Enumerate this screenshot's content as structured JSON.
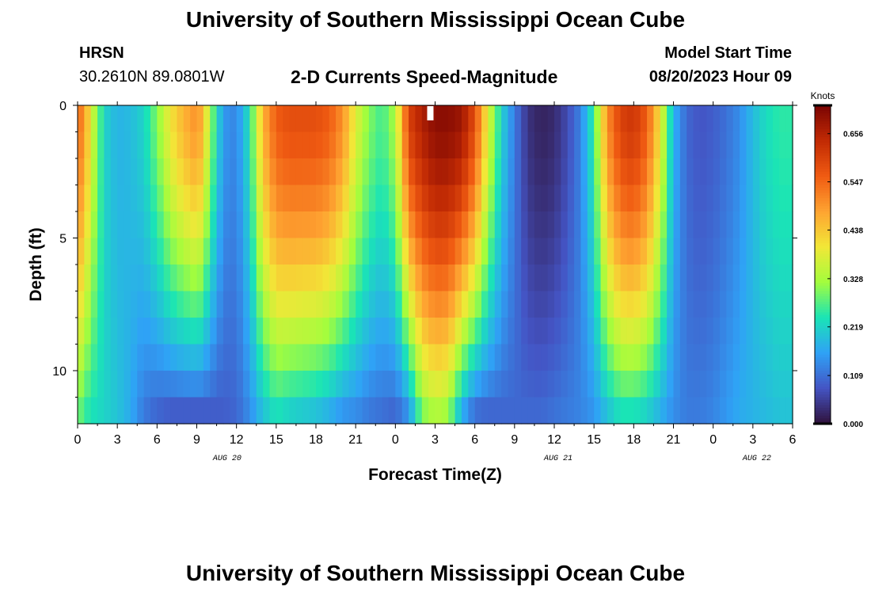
{
  "header": {
    "title": "University of Southern Mississippi Ocean Cube",
    "station": "HRSN",
    "coordinates": "30.2610N  89.0801W",
    "subtitle": "2-D Currents Speed-Magnitude",
    "model_start_label": "Model Start Time",
    "model_start_value": "08/20/2023 Hour 09"
  },
  "footer": {
    "title": "University of Southern Mississippi Ocean Cube"
  },
  "chart_data": {
    "type": "heatmap",
    "title": "2-D Currents Speed-Magnitude",
    "xlabel": "Forecast Time(Z)",
    "ylabel": "Depth (ft)",
    "x_range_hours": [
      0,
      54
    ],
    "y_range_ft": [
      0,
      12
    ],
    "x_ticks": [
      "0",
      "3",
      "6",
      "9",
      "12",
      "15",
      "18",
      "21",
      "0",
      "3",
      "6",
      "9",
      "12",
      "15",
      "18",
      "21",
      "0",
      "3",
      "6"
    ],
    "y_ticks": [
      "0",
      "5",
      "10"
    ],
    "date_labels": [
      {
        "text": "AUG 20",
        "hour": 11
      },
      {
        "text": "AUG 21",
        "hour": 36
      },
      {
        "text": "AUG 22",
        "hour": 51
      }
    ],
    "colorbar": {
      "label": "Knots",
      "ticks": [
        "0.656",
        "0.547",
        "0.438",
        "0.328",
        "0.219",
        "0.109",
        "0.000"
      ],
      "range": [
        0,
        0.72
      ],
      "colors": [
        "#30123b",
        "#4454c4",
        "#2fa2f6",
        "#1ae4b6",
        "#a3fd3d",
        "#f2e737",
        "#fea331",
        "#f05b12",
        "#c12a04",
        "#7a0403"
      ]
    },
    "depth_levels_ft": [
      0.5,
      1.5,
      2.5,
      3.5,
      4.5,
      5.5,
      6.5,
      7.5,
      8.5,
      9.5,
      10.5,
      11.5
    ],
    "speed_profiles_knots": {
      "description": "Speed (knots) by forecast hour; surface value and value near bottom",
      "hours": [
        0,
        0.5,
        1,
        2,
        3,
        4,
        5,
        6,
        7,
        8,
        9,
        9.5,
        10,
        11,
        12,
        13,
        14,
        15,
        16,
        17,
        18,
        19,
        20,
        21,
        22,
        23,
        24,
        25,
        26,
        27,
        28,
        29,
        30,
        31,
        32,
        33,
        34,
        35,
        36,
        37,
        38,
        39,
        40,
        41,
        42,
        43,
        44,
        45,
        46,
        47,
        48,
        49,
        50,
        51,
        52,
        53,
        54
      ],
      "surface": [
        0.54,
        0.5,
        0.38,
        0.22,
        0.18,
        0.19,
        0.22,
        0.3,
        0.4,
        0.46,
        0.5,
        0.45,
        0.32,
        0.15,
        0.13,
        0.24,
        0.46,
        0.56,
        0.58,
        0.58,
        0.58,
        0.56,
        0.5,
        0.38,
        0.3,
        0.26,
        0.33,
        0.6,
        0.66,
        0.7,
        0.7,
        0.68,
        0.58,
        0.38,
        0.22,
        0.12,
        0.04,
        0.02,
        0.03,
        0.07,
        0.13,
        0.26,
        0.5,
        0.6,
        0.62,
        0.56,
        0.4,
        0.18,
        0.1,
        0.08,
        0.09,
        0.11,
        0.14,
        0.19,
        0.23,
        0.25,
        0.25
      ],
      "bottom": [
        0.3,
        0.26,
        0.24,
        0.22,
        0.2,
        0.17,
        0.12,
        0.1,
        0.09,
        0.09,
        0.09,
        0.09,
        0.09,
        0.09,
        0.1,
        0.14,
        0.2,
        0.24,
        0.22,
        0.21,
        0.2,
        0.18,
        0.15,
        0.14,
        0.12,
        0.11,
        0.1,
        0.15,
        0.3,
        0.34,
        0.32,
        0.18,
        0.11,
        0.1,
        0.1,
        0.1,
        0.1,
        0.1,
        0.11,
        0.12,
        0.13,
        0.15,
        0.2,
        0.24,
        0.24,
        0.22,
        0.18,
        0.14,
        0.12,
        0.12,
        0.13,
        0.15,
        0.17,
        0.18,
        0.19,
        0.2,
        0.2
      ]
    }
  }
}
